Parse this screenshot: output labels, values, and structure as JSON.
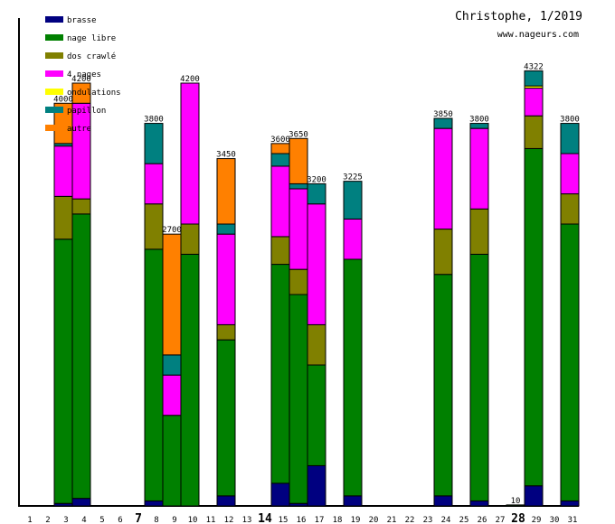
{
  "chart_data": {
    "type": "bar",
    "stacked": true,
    "title": "Christophe, 1/2019",
    "subtitle": "www.nageurs.com",
    "xlabel": "",
    "ylabel": "",
    "ylim": [
      0,
      4500
    ],
    "grid": false,
    "legend_position": "top-left",
    "categories": [
      "1",
      "2",
      "3",
      "4",
      "5",
      "6",
      "7",
      "8",
      "9",
      "10",
      "11",
      "12",
      "13",
      "14",
      "15",
      "16",
      "17",
      "18",
      "19",
      "20",
      "21",
      "22",
      "23",
      "24",
      "25",
      "26",
      "27",
      "28",
      "29",
      "30",
      "31"
    ],
    "bold_categories": [
      "7",
      "14",
      "28"
    ],
    "series": [
      {
        "name": "brasse",
        "color": "#000080",
        "values": [
          0,
          25,
          75,
          0,
          0,
          0,
          50,
          0,
          0,
          0,
          100,
          0,
          0,
          225,
          25,
          400,
          0,
          100,
          0,
          0,
          0,
          0,
          100,
          0,
          50,
          0,
          0,
          200,
          0,
          50,
          0
        ]
      },
      {
        "name": "nage libre",
        "color": "#008000",
        "values": [
          0,
          2625,
          2825,
          0,
          0,
          0,
          2500,
          900,
          2500,
          0,
          1550,
          0,
          0,
          2175,
          2075,
          1000,
          0,
          2350,
          0,
          0,
          0,
          0,
          2200,
          0,
          2450,
          0,
          10,
          3350,
          0,
          2750,
          0
        ]
      },
      {
        "name": "dos crawlé",
        "color": "#808000",
        "values": [
          0,
          425,
          150,
          0,
          0,
          0,
          450,
          0,
          300,
          0,
          150,
          0,
          0,
          275,
          250,
          400,
          0,
          0,
          0,
          0,
          0,
          0,
          450,
          0,
          450,
          0,
          0,
          325,
          0,
          300,
          0
        ]
      },
      {
        "name": "4 nages",
        "color": "#ff00ff",
        "values": [
          0,
          500,
          950,
          0,
          0,
          0,
          400,
          400,
          1400,
          0,
          900,
          0,
          0,
          700,
          800,
          1200,
          0,
          400,
          0,
          0,
          0,
          0,
          1000,
          0,
          800,
          0,
          0,
          275,
          0,
          400,
          0
        ]
      },
      {
        "name": "ondulations",
        "color": "#ffff00",
        "values": [
          0,
          0,
          0,
          0,
          0,
          0,
          0,
          0,
          0,
          0,
          0,
          0,
          0,
          0,
          0,
          0,
          0,
          0,
          0,
          0,
          0,
          0,
          0,
          0,
          0,
          0,
          0,
          22,
          0,
          0,
          0
        ]
      },
      {
        "name": "papillon",
        "color": "#008080",
        "values": [
          0,
          25,
          0,
          0,
          0,
          0,
          400,
          200,
          0,
          0,
          100,
          0,
          0,
          125,
          50,
          200,
          0,
          375,
          0,
          0,
          0,
          0,
          100,
          0,
          50,
          0,
          0,
          150,
          0,
          300,
          0
        ]
      },
      {
        "name": "autre",
        "color": "#ff8000",
        "values": [
          0,
          400,
          200,
          0,
          0,
          0,
          0,
          1200,
          0,
          0,
          650,
          0,
          0,
          100,
          450,
          0,
          0,
          0,
          0,
          0,
          0,
          0,
          0,
          0,
          0,
          0,
          0,
          0,
          0,
          0,
          0
        ]
      }
    ],
    "totals": [
      0,
      4000,
      4200,
      0,
      0,
      0,
      3800,
      2700,
      4200,
      0,
      3450,
      0,
      0,
      3600,
      3650,
      3200,
      0,
      3225,
      0,
      0,
      0,
      0,
      3850,
      0,
      3800,
      0,
      10,
      4322,
      0,
      3800,
      0
    ]
  }
}
